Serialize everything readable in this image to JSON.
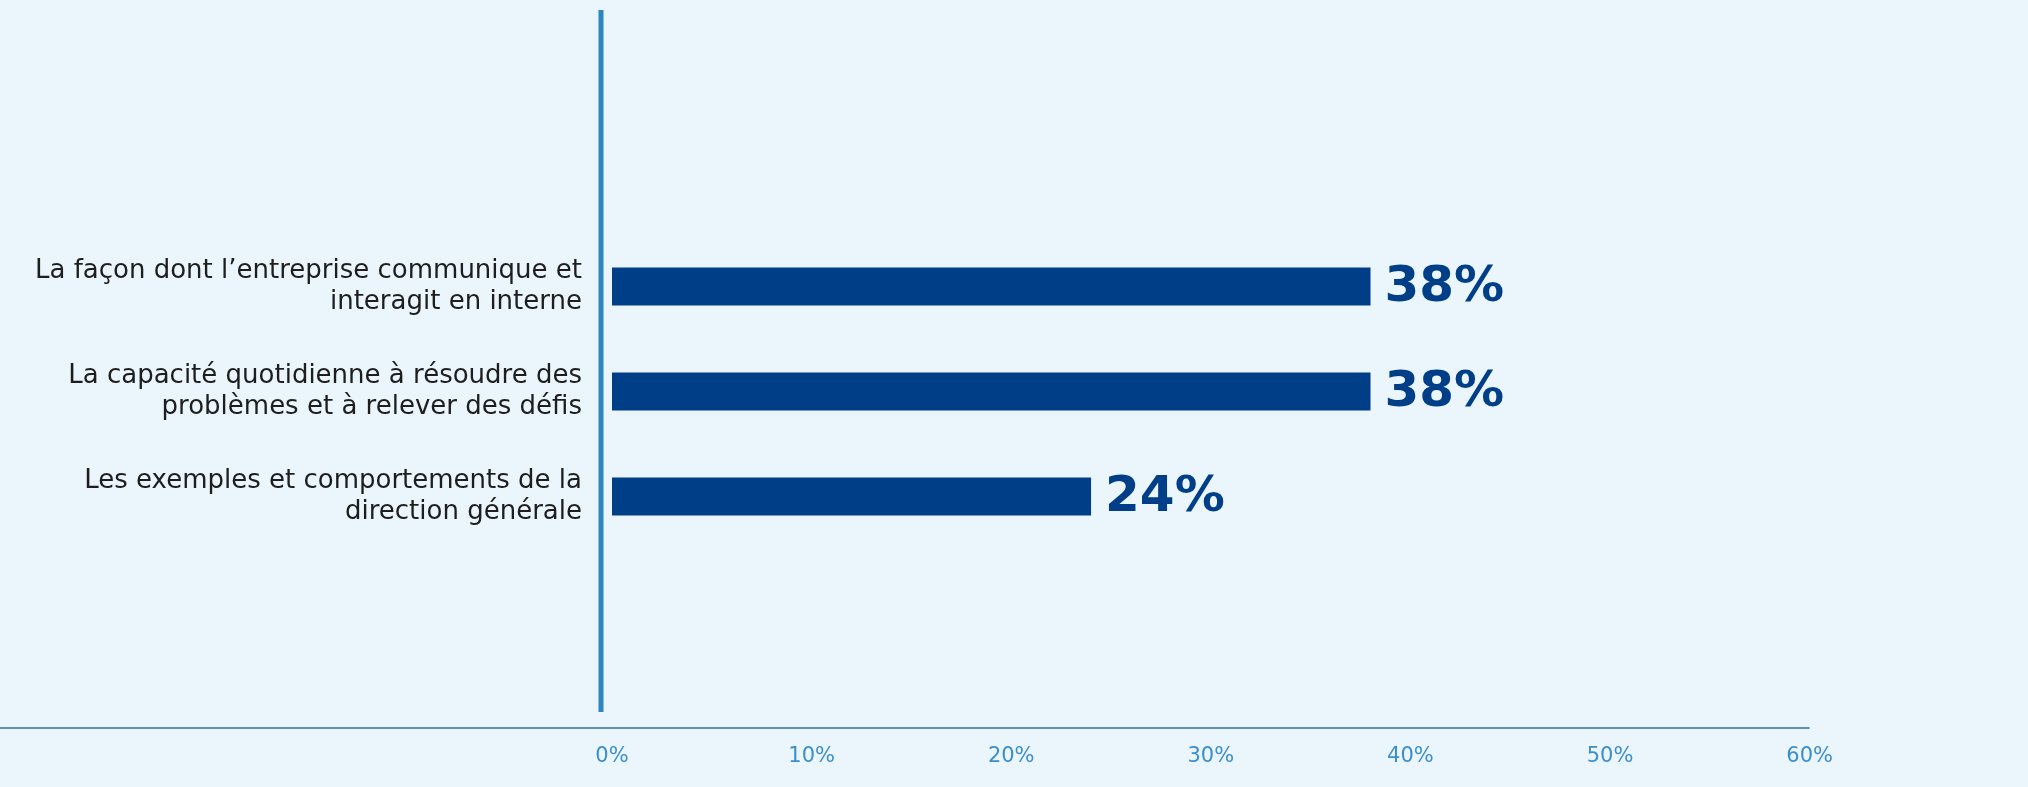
{
  "chart_data": {
    "type": "bar",
    "orientation": "horizontal",
    "categories": [
      "La façon dont l’entreprise communique et interagit en interne",
      "La capacité quotidienne à résoudre des problèmes et à relever des défis",
      "Les exemples et comportements de la direction générale"
    ],
    "values": [
      38,
      38,
      24
    ],
    "color": "#003f87",
    "xlim": [
      0,
      60
    ],
    "xticks": [
      {
        "value": 0,
        "label": "0%"
      },
      {
        "value": 10,
        "label": "10%"
      },
      {
        "value": 20,
        "label": "20%"
      },
      {
        "value": 30,
        "label": "30%"
      },
      {
        "value": 40,
        "label": "40%"
      },
      {
        "value": 50,
        "label": "50%"
      },
      {
        "value": 60,
        "label": "60%"
      }
    ],
    "value_labels": [
      "38%",
      "38%",
      "24%"
    ],
    "grid": false,
    "legend": false
  }
}
